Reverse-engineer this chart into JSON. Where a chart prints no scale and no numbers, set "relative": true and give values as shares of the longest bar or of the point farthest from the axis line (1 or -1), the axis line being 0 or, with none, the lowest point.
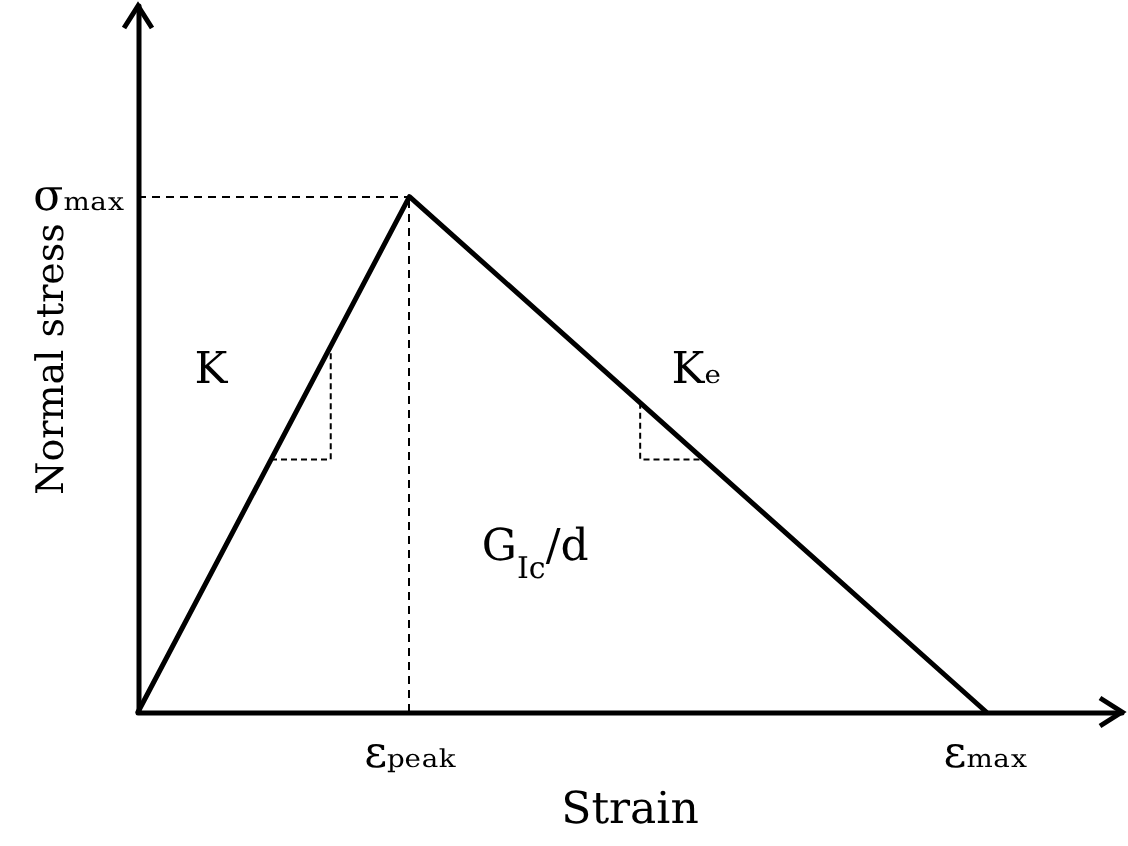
{
  "chart_data": {
    "type": "line",
    "relative": true,
    "xlabel": "Strain",
    "ylabel": "Normal stress",
    "categories": [
      null,
      null,
      null,
      null,
      null,
      null,
      null,
      null,
      "εₚₑₐₖ",
      null,
      null,
      null,
      null,
      null,
      null,
      null,
      null,
      null,
      null,
      null,
      null,
      null,
      null,
      null,
      null,
      "εₘₐₓ",
      null,
      null,
      null,
      null
    ],
    "series": [
      {
        "color": "#000000",
        "values": [
          0,
          null,
          null,
          null,
          null,
          null,
          null,
          null,
          1,
          null,
          null,
          null,
          null,
          null,
          null,
          null,
          null,
          null,
          null,
          null,
          null,
          null,
          null,
          null,
          null,
          0,
          null,
          null,
          null,
          null
        ]
      }
    ],
    "ref_lines": [
      {
        "axis": "y",
        "value": 1,
        "label": "σₘₐₓ",
        "color": "#000000",
        "line_style": "dashed"
      },
      {
        "axis": "x",
        "value": "εₚₑₐₖ",
        "label": null,
        "color": "#000000",
        "line_style": "dashed"
      }
    ],
    "annotations": [
      "K",
      "Kₑ",
      "G$_{Ic}$/d"
    ],
    "marker": "none"
  }
}
